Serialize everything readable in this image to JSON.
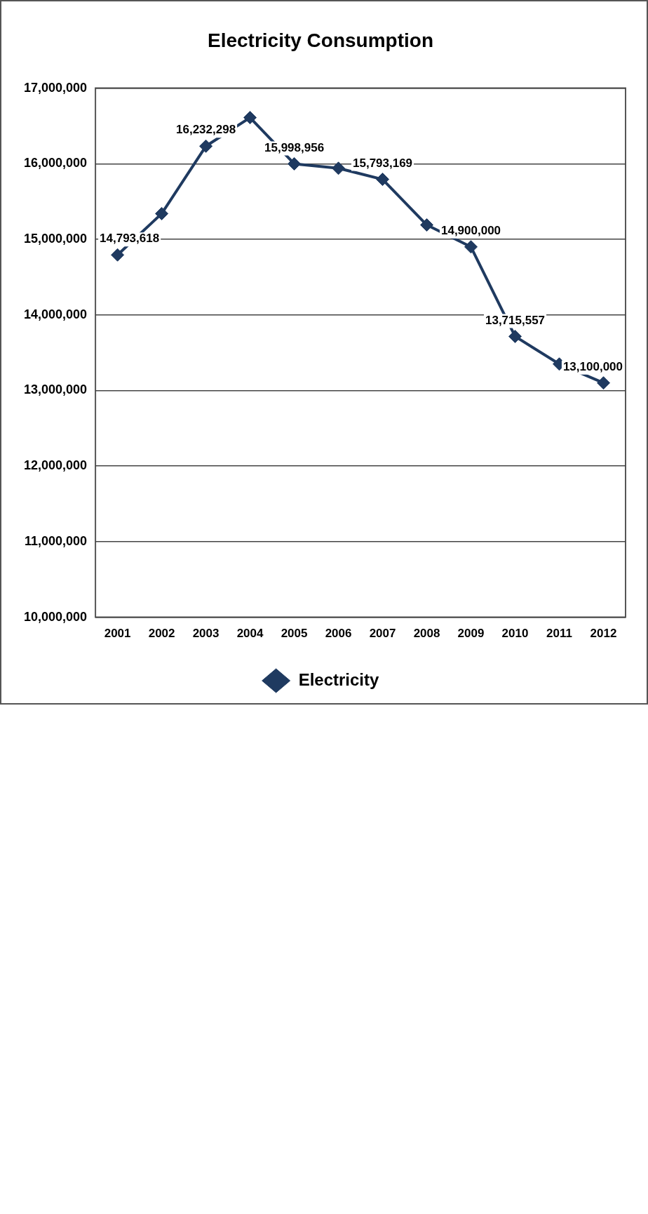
{
  "chart_data": {
    "type": "line",
    "title": "Electricity Consumption",
    "categories": [
      "2001",
      "2002",
      "2003",
      "2004",
      "2005",
      "2006",
      "2007",
      "2008",
      "2009",
      "2010",
      "2011",
      "2012"
    ],
    "series": [
      {
        "name": "Electricity",
        "color": "#1f3a60",
        "values": [
          14793618,
          15340000,
          16232298,
          16610000,
          15998956,
          15940000,
          15793169,
          15190000,
          14900000,
          13715557,
          13350000,
          13100000
        ],
        "value_labels": [
          "14,793,618",
          null,
          "16,232,298",
          null,
          "15,998,956",
          null,
          "15,793,169",
          null,
          "14,900,000",
          "13,715,557",
          null,
          "13,100,000"
        ]
      }
    ],
    "ylim": [
      10000000,
      17000000
    ],
    "yticks": [
      {
        "value": 10000000,
        "label": "10,000,000"
      },
      {
        "value": 11000000,
        "label": "11,000,000"
      },
      {
        "value": 12000000,
        "label": "12,000,000"
      },
      {
        "value": 13000000,
        "label": "13,000,000"
      },
      {
        "value": 14000000,
        "label": "14,000,000"
      },
      {
        "value": 15000000,
        "label": "15,000,000"
      },
      {
        "value": 16000000,
        "label": "16,000,000"
      },
      {
        "value": 17000000,
        "label": "17,000,000"
      }
    ],
    "grid": "y",
    "legend": "bottom",
    "marker": "diamond",
    "line_style": "solid"
  }
}
